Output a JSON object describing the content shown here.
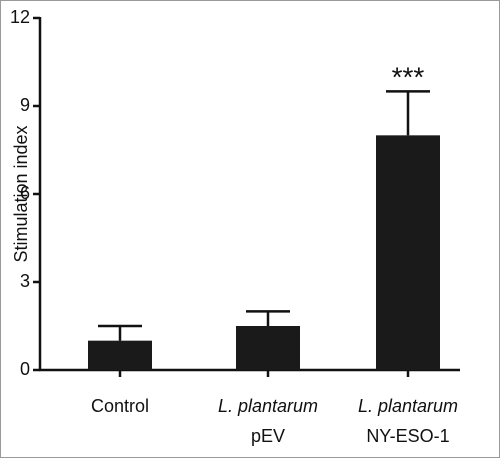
{
  "chart_data": {
    "type": "bar",
    "y_label": "Stimulation index",
    "categories": [
      [
        "Control"
      ],
      [
        "L. plantarum",
        "pEV"
      ],
      [
        "L. plantarum",
        "NY-ESO-1"
      ]
    ],
    "values": [
      1.0,
      1.5,
      8.0
    ],
    "errors": [
      0.5,
      0.5,
      1.5
    ],
    "color": "#1a1a1a",
    "ylim": [
      0,
      12
    ],
    "yticks": [
      0,
      3,
      6,
      9,
      12
    ],
    "annotation": {
      "text": "***",
      "category": 2
    }
  }
}
